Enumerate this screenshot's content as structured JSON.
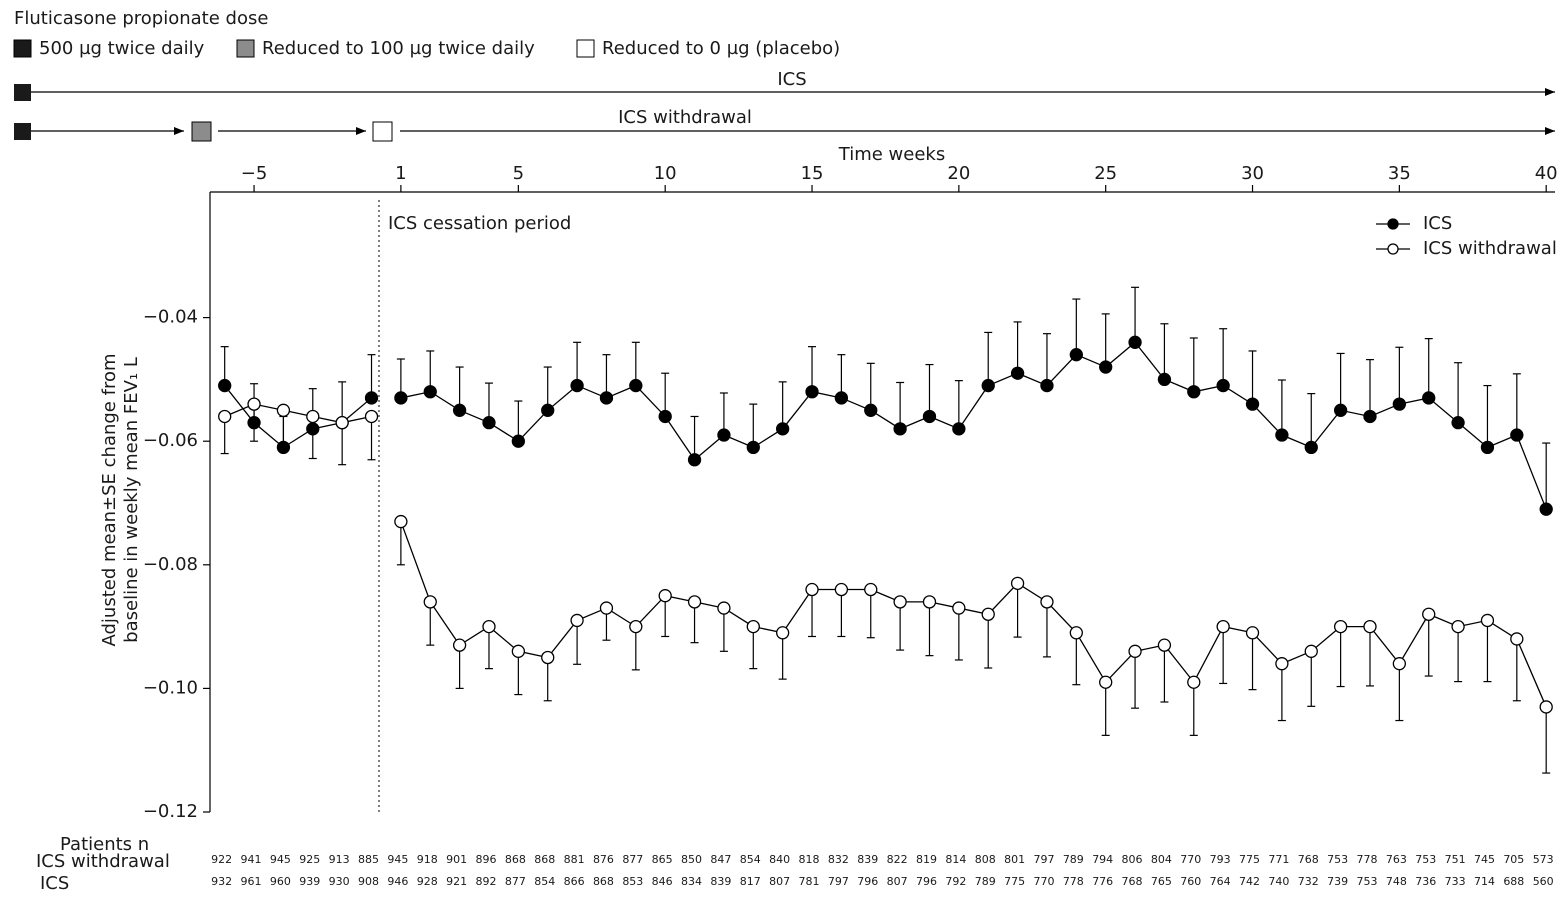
{
  "chart_data": {
    "type": "line",
    "dose_legend": {
      "title": "Fluticasone propionate dose",
      "items": [
        {
          "label": "500 µg twice daily",
          "color": "#1a1a1a"
        },
        {
          "label": "Reduced to 100 µg twice daily",
          "color": "#8c8c8c"
        },
        {
          "label": "Reduced to 0 µg (placebo)",
          "color": "#ffffff"
        }
      ]
    },
    "timeline_labels": [
      "ICS",
      "ICS withdrawal"
    ],
    "x_label": "Time weeks",
    "y_label": [
      "Adjusted mean±SE change from",
      "baseline in weekly mean FEV₁ L"
    ],
    "annotation": "ICS cessation period",
    "x": [
      -6,
      -5,
      -4,
      -3,
      -2,
      -1,
      1,
      2,
      3,
      4,
      5,
      6,
      7,
      8,
      9,
      10,
      11,
      12,
      13,
      14,
      15,
      16,
      17,
      18,
      19,
      20,
      21,
      22,
      23,
      24,
      25,
      26,
      27,
      28,
      29,
      30,
      31,
      32,
      33,
      34,
      35,
      36,
      37,
      38,
      39,
      40
    ],
    "xlim": [
      -6.5,
      40.3
    ],
    "xticks": [
      {
        "value": -5,
        "label": "−5"
      },
      1,
      5,
      10,
      15,
      20,
      25,
      30,
      35,
      40
    ],
    "ylim": [
      -0.12,
      -0.02
    ],
    "yticks": [
      {
        "value": -0.12,
        "label": "−0.12"
      },
      {
        "value": -0.1,
        "label": "−0.10"
      },
      {
        "value": -0.08,
        "label": "−0.08"
      },
      {
        "value": -0.06,
        "label": "−0.06"
      },
      {
        "value": -0.04,
        "label": "−0.04"
      }
    ],
    "legend": "top-right",
    "series": [
      {
        "name": "ICS",
        "color": "#000000",
        "marker_fill": "#000000",
        "error_direction": "up",
        "values": [
          -0.051,
          -0.057,
          -0.061,
          -0.058,
          -0.057,
          -0.053,
          -0.053,
          -0.052,
          -0.055,
          -0.057,
          -0.06,
          -0.055,
          -0.051,
          -0.053,
          -0.051,
          -0.056,
          -0.063,
          -0.059,
          -0.061,
          -0.058,
          -0.052,
          -0.053,
          -0.055,
          -0.058,
          -0.056,
          -0.058,
          -0.051,
          -0.049,
          -0.051,
          -0.046,
          -0.048,
          -0.044,
          -0.05,
          -0.052,
          -0.051,
          -0.054,
          -0.059,
          -0.061,
          -0.055,
          -0.056,
          -0.054,
          -0.053,
          -0.057,
          -0.061,
          -0.059,
          -0.071
        ],
        "errors": [
          0.0063,
          0.0063,
          0.005,
          0.0065,
          0.0066,
          0.007,
          0.0063,
          0.0066,
          0.007,
          0.0064,
          0.0065,
          0.007,
          0.007,
          0.007,
          0.007,
          0.007,
          0.007,
          0.0068,
          0.007,
          0.0076,
          0.0073,
          0.007,
          0.0076,
          0.0075,
          0.0084,
          0.0078,
          0.0086,
          0.0083,
          0.0084,
          0.009,
          0.0086,
          0.0089,
          0.009,
          0.0087,
          0.0092,
          0.0086,
          0.0089,
          0.0087,
          0.0092,
          0.0092,
          0.0092,
          0.0096,
          0.0097,
          0.01,
          0.0099,
          0.0107
        ]
      },
      {
        "name": "ICS withdrawal",
        "color": "#000000",
        "marker_fill": "#ffffff",
        "error_direction": "down",
        "values": [
          -0.056,
          -0.054,
          -0.055,
          -0.056,
          -0.057,
          -0.056,
          -0.073,
          -0.086,
          -0.093,
          -0.09,
          -0.094,
          -0.095,
          -0.089,
          -0.087,
          -0.09,
          -0.085,
          -0.086,
          -0.087,
          -0.09,
          -0.091,
          -0.084,
          -0.084,
          -0.084,
          -0.086,
          -0.086,
          -0.087,
          -0.088,
          -0.083,
          -0.086,
          -0.091,
          -0.099,
          -0.094,
          -0.093,
          -0.099,
          -0.09,
          -0.091,
          -0.096,
          -0.094,
          -0.09,
          -0.09,
          -0.096,
          -0.088,
          -0.09,
          -0.089,
          -0.092,
          -0.103
        ],
        "errors": [
          0.006,
          0.006,
          0.0055,
          0.0068,
          0.0068,
          0.007,
          0.007,
          0.007,
          0.007,
          0.0068,
          0.007,
          0.007,
          0.0071,
          0.0052,
          0.007,
          0.0066,
          0.0066,
          0.007,
          0.0068,
          0.0075,
          0.0076,
          0.0076,
          0.0078,
          0.0078,
          0.0087,
          0.0084,
          0.0087,
          0.0087,
          0.0089,
          0.0084,
          0.0086,
          0.0092,
          0.0092,
          0.0086,
          0.0092,
          0.0092,
          0.0092,
          0.0089,
          0.0097,
          0.0096,
          0.0092,
          0.01,
          0.0089,
          0.0099,
          0.01,
          0.0107
        ]
      }
    ],
    "patients": {
      "title": "Patients n",
      "rows": [
        {
          "label": "ICS withdrawal",
          "values": [
            922,
            941,
            945,
            925,
            913,
            885,
            945,
            918,
            901,
            896,
            868,
            868,
            881,
            876,
            877,
            865,
            850,
            847,
            854,
            840,
            818,
            832,
            839,
            822,
            819,
            814,
            808,
            801,
            797,
            789,
            794,
            806,
            804,
            770,
            793,
            775,
            771,
            768,
            753,
            778,
            763,
            753,
            751,
            745,
            705,
            573
          ]
        },
        {
          "label": "ICS",
          "values": [
            932,
            961,
            960,
            939,
            930,
            908,
            946,
            928,
            921,
            892,
            877,
            854,
            866,
            868,
            853,
            846,
            834,
            839,
            817,
            807,
            781,
            797,
            796,
            807,
            796,
            792,
            789,
            775,
            770,
            778,
            776,
            768,
            765,
            760,
            764,
            742,
            740,
            732,
            739,
            753,
            748,
            736,
            733,
            714,
            688,
            560
          ]
        }
      ]
    }
  }
}
